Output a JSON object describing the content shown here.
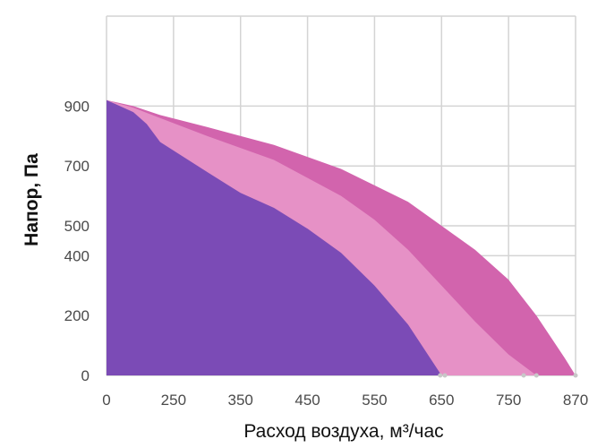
{
  "chart_data": {
    "type": "area",
    "title": "",
    "xlabel": "Расход воздуха, м³/час",
    "ylabel": "Напор, Па",
    "x_ticks": [
      "0",
      "250",
      "350",
      "450",
      "550",
      "650",
      "750",
      "870"
    ],
    "y_ticks": [
      "0",
      "200",
      "400",
      "500",
      "700",
      "900"
    ],
    "x_tick_values": [
      0,
      250,
      350,
      450,
      550,
      650,
      750,
      870
    ],
    "y_tick_values": [
      0,
      200,
      400,
      500,
      700,
      900
    ],
    "xlim": [
      0,
      870
    ],
    "ylim": [
      0,
      1000
    ],
    "grid": true,
    "legend": "none",
    "series": [
      {
        "color": "#d264ad",
        "x": [
          0,
          100,
          200,
          300,
          400,
          500,
          600,
          700,
          750,
          800,
          850,
          870
        ],
        "y": [
          920,
          900,
          870,
          830,
          770,
          690,
          580,
          420,
          320,
          200,
          60,
          0
        ]
      },
      {
        "color": "#e691c6",
        "x": [
          0,
          100,
          200,
          300,
          400,
          500,
          550,
          600,
          650,
          700,
          750,
          800
        ],
        "y": [
          920,
          895,
          860,
          800,
          720,
          600,
          520,
          420,
          300,
          180,
          70,
          0
        ]
      },
      {
        "color": "#7b4bb6",
        "x": [
          0,
          100,
          150,
          200,
          300,
          350,
          400,
          450,
          500,
          550,
          600,
          650
        ],
        "y": [
          920,
          880,
          840,
          780,
          680,
          610,
          560,
          490,
          410,
          300,
          170,
          0
        ]
      }
    ]
  }
}
